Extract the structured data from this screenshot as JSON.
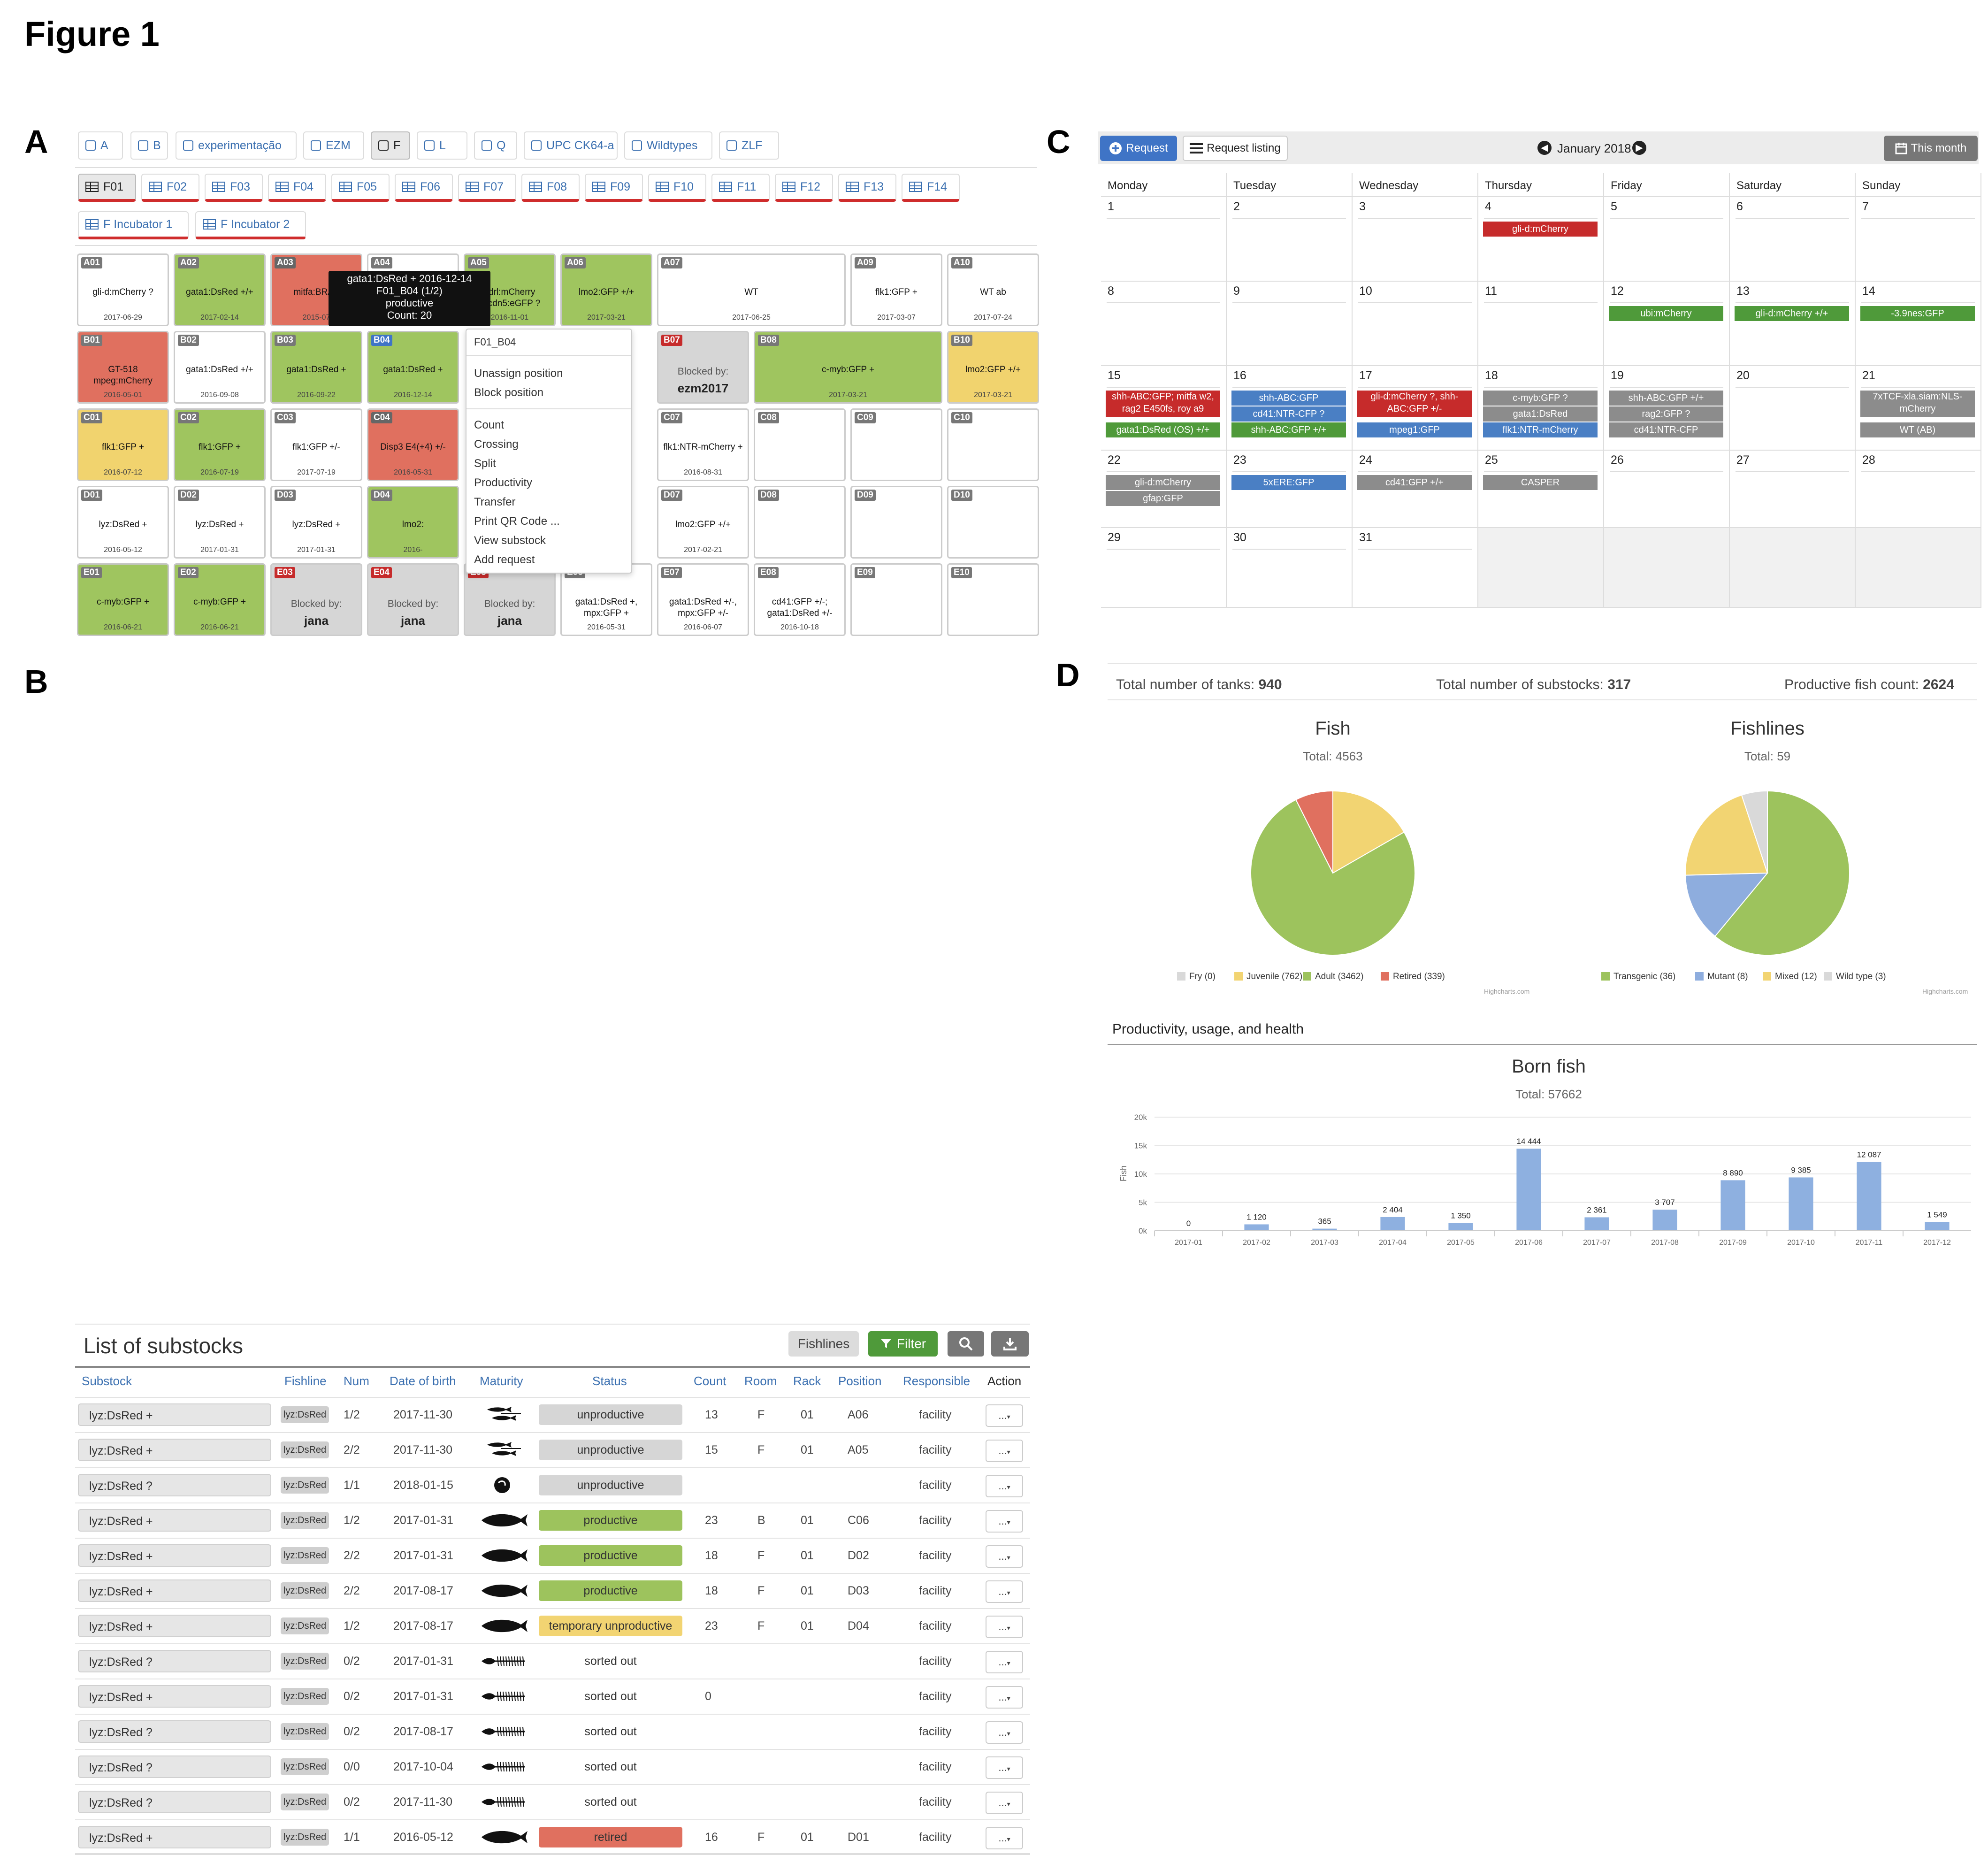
{
  "figure_title": "Figure 1",
  "panels": {
    "a": "A",
    "b": "B",
    "c": "C",
    "d": "D"
  },
  "panelA": {
    "room_tabs": [
      {
        "label": "A",
        "active": false
      },
      {
        "label": "B",
        "active": false
      },
      {
        "label": "experimentação",
        "active": false
      },
      {
        "label": "EZM",
        "active": false
      },
      {
        "label": "F",
        "active": true
      },
      {
        "label": "L",
        "active": false
      },
      {
        "label": "Q",
        "active": false
      },
      {
        "label": "UPC CK64-a",
        "active": false
      },
      {
        "label": "Wildtypes",
        "active": false
      },
      {
        "label": "ZLF",
        "active": false
      }
    ],
    "rack_tabs": [
      {
        "label": "F01",
        "active": true
      },
      {
        "label": "F02"
      },
      {
        "label": "F03"
      },
      {
        "label": "F04"
      },
      {
        "label": "F05"
      },
      {
        "label": "F06"
      },
      {
        "label": "F07"
      },
      {
        "label": "F08"
      },
      {
        "label": "F09"
      },
      {
        "label": "F10"
      },
      {
        "label": "F11"
      },
      {
        "label": "F12"
      },
      {
        "label": "F13"
      },
      {
        "label": "F14"
      }
    ],
    "incubator_tabs": [
      {
        "label": "F Incubator 1"
      },
      {
        "label": "F Incubator 2"
      }
    ],
    "tanks": [
      {
        "id": "A01",
        "line1": "gli-d:mCherry ?",
        "date": "2017-06-29",
        "state": "empty"
      },
      {
        "id": "A02",
        "line1": "gata1:DsRed +/+",
        "date": "2017-02-14",
        "state": "green"
      },
      {
        "id": "A03",
        "line1": "mitfa:BRAF",
        "date": "2015-07",
        "state": "red"
      },
      {
        "id": "A04",
        "line1": "",
        "date": "",
        "state": "empty"
      },
      {
        "id": "A05",
        "line1": "kdrl:mCherry fli:cdn5:eGFP ?",
        "date": "2016-11-01",
        "state": "green"
      },
      {
        "id": "A06",
        "line1": "lmo2:GFP +/+",
        "date": "2017-03-21",
        "state": "green"
      },
      {
        "id": "A07",
        "line1": "WT",
        "date": "2017-06-25",
        "state": "empty"
      },
      {
        "id": "A09",
        "line1": "flk1:GFP +",
        "date": "2017-03-07",
        "state": "empty"
      },
      {
        "id": "A10",
        "line1": "WT ab",
        "date": "2017-07-24",
        "state": "empty"
      },
      {
        "id": "B01",
        "line1": "GT-518 mpeg:mCherry",
        "date": "2016-05-01",
        "state": "red"
      },
      {
        "id": "B02",
        "line1": "gata1:DsRed +/+",
        "date": "2016-09-08",
        "state": "empty"
      },
      {
        "id": "B03",
        "line1": "gata1:DsRed +",
        "date": "2016-09-22",
        "state": "green"
      },
      {
        "id": "B04",
        "line1": "gata1:DsRed +",
        "date": "2016-12-14",
        "state": "green"
      },
      {
        "id": "B07",
        "blocked_label": "Blocked by:",
        "blocked_by": "ezm2017",
        "state": "grey"
      },
      {
        "id": "B08",
        "line1": "c-myb:GFP +",
        "date": "2017-03-21",
        "state": "green"
      },
      {
        "id": "B10",
        "line1": "lmo2:GFP +/+",
        "date": "2017-03-21",
        "state": "yellow"
      },
      {
        "id": "C01",
        "line1": "flk1:GFP +",
        "date": "2016-07-12",
        "state": "yellow"
      },
      {
        "id": "C02",
        "line1": "flk1:GFP +",
        "date": "2016-07-19",
        "state": "green"
      },
      {
        "id": "C03",
        "line1": "flk1:GFP +/-",
        "date": "2017-07-19",
        "state": "empty"
      },
      {
        "id": "C04",
        "line1": "Disp3 E4(+4) +/-",
        "date": "2016-05-31",
        "state": "red"
      },
      {
        "id": "C07",
        "line1": "flk1:NTR-mCherry +",
        "date": "2016-08-31",
        "state": "empty"
      },
      {
        "id": "C08",
        "line1": "",
        "date": "",
        "state": "empty"
      },
      {
        "id": "C09",
        "line1": "",
        "date": "",
        "state": "empty"
      },
      {
        "id": "C10",
        "line1": "",
        "date": "",
        "state": "empty"
      },
      {
        "id": "D01",
        "line1": "lyz:DsRed +",
        "date": "2016-05-12",
        "state": "empty"
      },
      {
        "id": "D02",
        "line1": "lyz:DsRed +",
        "date": "2017-01-31",
        "state": "empty"
      },
      {
        "id": "D03",
        "line1": "lyz:DsRed +",
        "date": "2017-01-31",
        "state": "empty"
      },
      {
        "id": "D04",
        "line1": "lmo2:",
        "date": "2016-",
        "state": "green"
      },
      {
        "id": "D07",
        "line1": "lmo2:GFP +/+",
        "date": "2017-02-21",
        "state": "empty"
      },
      {
        "id": "D08",
        "line1": "",
        "date": "",
        "state": "empty"
      },
      {
        "id": "D09",
        "line1": "",
        "date": "",
        "state": "empty"
      },
      {
        "id": "D10",
        "line1": "",
        "date": "",
        "state": "empty"
      },
      {
        "id": "E01",
        "line1": "c-myb:GFP +",
        "date": "2016-06-21",
        "state": "green"
      },
      {
        "id": "E02",
        "line1": "c-myb:GFP +",
        "date": "2016-06-21",
        "state": "green"
      },
      {
        "id": "E03",
        "blocked_label": "Blocked by:",
        "blocked_by": "jana",
        "state": "grey"
      },
      {
        "id": "E04",
        "blocked_label": "Blocked by:",
        "blocked_by": "jana",
        "state": "grey"
      },
      {
        "id": "E05",
        "blocked_label": "Blocked by:",
        "blocked_by": "jana",
        "state": "grey"
      },
      {
        "id": "E06",
        "line1": "gata1:DsRed +, mpx:GFP +",
        "date": "2016-05-31",
        "state": "empty"
      },
      {
        "id": "E07",
        "line1": "gata1:DsRed +/-, mpx:GFP +/-",
        "date": "2016-06-07",
        "state": "empty"
      },
      {
        "id": "E08",
        "line1": "cd41:GFP +/-; gata1:DsRed +/-",
        "date": "2016-10-18",
        "state": "empty"
      },
      {
        "id": "E09",
        "line1": "",
        "date": "",
        "state": "empty"
      },
      {
        "id": "E10",
        "line1": "",
        "date": "",
        "state": "empty"
      }
    ],
    "tooltip": {
      "line1": "gata1:DsRed + 2016-12-14",
      "line2": "F01_B04 (1/2)",
      "line3": "productive",
      "line4": "Count: 20"
    },
    "context_menu": {
      "header": "F01_B04",
      "group1": [
        "Unassign position",
        "Block position"
      ],
      "group2": [
        "Count",
        "Crossing",
        "Split",
        "Productivity",
        "Transfer",
        "Print QR Code ...",
        "View substock",
        "Add request"
      ]
    }
  },
  "panelB": {
    "title": "List of substocks",
    "fishlines_button": "Fishlines",
    "filter_button": "Filter",
    "columns": [
      "Substock",
      "Fishline",
      "Num",
      "Date of birth",
      "Maturity",
      "Status",
      "Count",
      "Room",
      "Rack",
      "Position",
      "Responsible",
      "Action"
    ],
    "rows": [
      {
        "substock": "lyz:DsRed +",
        "fishline": "lyz:DsRed",
        "num": "1/2",
        "dob": "2017-11-30",
        "maturity": "juvenile",
        "status": "unproductive",
        "status_color": "grey",
        "count": "13",
        "room": "F",
        "rack": "01",
        "position": "A06",
        "responsible": "facility"
      },
      {
        "substock": "lyz:DsRed +",
        "fishline": "lyz:DsRed",
        "num": "2/2",
        "dob": "2017-11-30",
        "maturity": "juvenile",
        "status": "unproductive",
        "status_color": "grey",
        "count": "15",
        "room": "F",
        "rack": "01",
        "position": "A05",
        "responsible": "facility"
      },
      {
        "substock": "lyz:DsRed ?",
        "fishline": "lyz:DsRed",
        "num": "1/1",
        "dob": "2018-01-15",
        "maturity": "egg",
        "status": "unproductive",
        "status_color": "grey",
        "count": "",
        "room": "",
        "rack": "",
        "position": "",
        "responsible": "facility"
      },
      {
        "substock": "lyz:DsRed +",
        "fishline": "lyz:DsRed",
        "num": "1/2",
        "dob": "2017-01-31",
        "maturity": "adult",
        "status": "productive",
        "status_color": "green",
        "count": "23",
        "room": "B",
        "rack": "01",
        "position": "C06",
        "responsible": "facility"
      },
      {
        "substock": "lyz:DsRed +",
        "fishline": "lyz:DsRed",
        "num": "2/2",
        "dob": "2017-01-31",
        "maturity": "adult",
        "status": "productive",
        "status_color": "green",
        "count": "18",
        "room": "F",
        "rack": "01",
        "position": "D02",
        "responsible": "facility"
      },
      {
        "substock": "lyz:DsRed +",
        "fishline": "lyz:DsRed",
        "num": "2/2",
        "dob": "2017-08-17",
        "maturity": "adult",
        "status": "productive",
        "status_color": "green",
        "count": "18",
        "room": "F",
        "rack": "01",
        "position": "D03",
        "responsible": "facility"
      },
      {
        "substock": "lyz:DsRed +",
        "fishline": "lyz:DsRed",
        "num": "1/2",
        "dob": "2017-08-17",
        "maturity": "adult",
        "status": "temporary unproductive",
        "status_color": "yellow",
        "count": "23",
        "room": "F",
        "rack": "01",
        "position": "D04",
        "responsible": "facility"
      },
      {
        "substock": "lyz:DsRed ?",
        "fishline": "lyz:DsRed",
        "num": "0/2",
        "dob": "2017-01-31",
        "maturity": "skeleton",
        "status": "sorted out",
        "status_color": "none",
        "count": "",
        "room": "",
        "rack": "",
        "position": "",
        "responsible": "facility"
      },
      {
        "substock": "lyz:DsRed +",
        "fishline": "lyz:DsRed",
        "num": "0/2",
        "dob": "2017-01-31",
        "maturity": "skeleton",
        "status": "sorted out",
        "status_color": "none",
        "count": "0",
        "room": "",
        "rack": "",
        "position": "",
        "responsible": "facility"
      },
      {
        "substock": "lyz:DsRed ?",
        "fishline": "lyz:DsRed",
        "num": "0/2",
        "dob": "2017-08-17",
        "maturity": "skeleton",
        "status": "sorted out",
        "status_color": "none",
        "count": "",
        "room": "",
        "rack": "",
        "position": "",
        "responsible": "facility"
      },
      {
        "substock": "lyz:DsRed ?",
        "fishline": "lyz:DsRed",
        "num": "0/0",
        "dob": "2017-10-04",
        "maturity": "skeleton",
        "status": "sorted out",
        "status_color": "none",
        "count": "",
        "room": "",
        "rack": "",
        "position": "",
        "responsible": "facility"
      },
      {
        "substock": "lyz:DsRed ?",
        "fishline": "lyz:DsRed",
        "num": "0/2",
        "dob": "2017-11-30",
        "maturity": "skeleton",
        "status": "sorted out",
        "status_color": "none",
        "count": "",
        "room": "",
        "rack": "",
        "position": "",
        "responsible": "facility"
      },
      {
        "substock": "lyz:DsRed +",
        "fishline": "lyz:DsRed",
        "num": "1/1",
        "dob": "2016-05-12",
        "maturity": "adult",
        "status": "retired",
        "status_color": "red",
        "count": "16",
        "room": "F",
        "rack": "01",
        "position": "D01",
        "responsible": "facility"
      }
    ],
    "action_label": "..."
  },
  "panelC": {
    "request_button": "Request",
    "listing_button": "Request listing",
    "month": "January 2018",
    "this_month_button": "This month",
    "weekdays": [
      "Monday",
      "Tuesday",
      "Wednesday",
      "Thursday",
      "Friday",
      "Saturday",
      "Sunday"
    ],
    "weeks": [
      [
        "1",
        "2",
        "3",
        "4",
        "5",
        "6",
        "7"
      ],
      [
        "8",
        "9",
        "10",
        "11",
        "12",
        "13",
        "14"
      ],
      [
        "15",
        "16",
        "17",
        "18",
        "19",
        "20",
        "21"
      ],
      [
        "22",
        "23",
        "24",
        "25",
        "26",
        "27",
        "28"
      ],
      [
        "29",
        "30",
        "31",
        "",
        "",
        "",
        ""
      ]
    ],
    "events": [
      {
        "week": 0,
        "day": 3,
        "slot": 0,
        "label": "gli-d:mCherry",
        "color": "red"
      },
      {
        "week": 1,
        "day": 4,
        "slot": 0,
        "label": "ubi:mCherry",
        "color": "green"
      },
      {
        "week": 1,
        "day": 5,
        "slot": 0,
        "label": "gli-d:mCherry +/+",
        "color": "green"
      },
      {
        "week": 1,
        "day": 6,
        "slot": 0,
        "label": "-3.9nes:GFP",
        "color": "green"
      },
      {
        "week": 2,
        "day": 0,
        "slot": 0,
        "label": "shh-ABC:GFP; mitfa w2, rag2 E450fs, roy a9",
        "color": "red",
        "tall": true
      },
      {
        "week": 2,
        "day": 0,
        "slot": 2,
        "label": "gata1:DsRed (OS) +/+",
        "color": "green"
      },
      {
        "week": 2,
        "day": 1,
        "slot": 0,
        "label": "shh-ABC:GFP",
        "color": "blue"
      },
      {
        "week": 2,
        "day": 1,
        "slot": 1,
        "label": "cd41:NTR-CFP ?",
        "color": "blue"
      },
      {
        "week": 2,
        "day": 1,
        "slot": 2,
        "label": "shh-ABC:GFP +/+",
        "color": "green"
      },
      {
        "week": 2,
        "day": 2,
        "slot": 0,
        "label": "gli-d:mCherry ?, shh-ABC:GFP +/-",
        "color": "red",
        "tall": true
      },
      {
        "week": 2,
        "day": 2,
        "slot": 2,
        "label": "mpeg1:GFP",
        "color": "blue"
      },
      {
        "week": 2,
        "day": 3,
        "slot": 0,
        "label": "c-myb:GFP ?",
        "color": "grey"
      },
      {
        "week": 2,
        "day": 3,
        "slot": 1,
        "label": "gata1:DsRed",
        "color": "grey"
      },
      {
        "week": 2,
        "day": 3,
        "slot": 2,
        "label": "flk1:NTR-mCherry",
        "color": "blue"
      },
      {
        "week": 2,
        "day": 4,
        "slot": 0,
        "label": "shh-ABC:GFP +/+",
        "color": "grey"
      },
      {
        "week": 2,
        "day": 4,
        "slot": 1,
        "label": "rag2:GFP ?",
        "color": "grey"
      },
      {
        "week": 2,
        "day": 4,
        "slot": 2,
        "label": "cd41:NTR-CFP",
        "color": "grey"
      },
      {
        "week": 2,
        "day": 6,
        "slot": 0,
        "label": "7xTCF-xla.siam:NLS-mCherry",
        "color": "grey",
        "tall": true
      },
      {
        "week": 2,
        "day": 6,
        "slot": 2,
        "label": "WT (AB)",
        "color": "grey"
      },
      {
        "week": 3,
        "day": 0,
        "slot": 0,
        "label": "gli-d:mCherry",
        "color": "grey"
      },
      {
        "week": 3,
        "day": 0,
        "slot": 1,
        "label": "gfap:GFP",
        "color": "grey"
      },
      {
        "week": 3,
        "day": 1,
        "slot": 0,
        "label": "5xERE:GFP",
        "color": "blue"
      },
      {
        "week": 3,
        "day": 2,
        "slot": 0,
        "label": "cd41:GFP +/+",
        "color": "grey"
      },
      {
        "week": 3,
        "day": 3,
        "slot": 0,
        "label": "CASPER",
        "color": "grey"
      }
    ]
  },
  "panelD": {
    "stats": {
      "tanks_label": "Total number of tanks:",
      "tanks_value": "940",
      "substocks_label": "Total number of substocks:",
      "substocks_value": "317",
      "productive_label": "Productive fish count:",
      "productive_value": "2624"
    },
    "credits": "Highcharts.com",
    "productivity_header": "Productivity, usage, and health",
    "colors": {
      "grey": "#d9d9d9",
      "yellow": "#f2d472",
      "green": "#9dc35d",
      "red": "#e0705f",
      "blue": "#8eadde",
      "barblue": "#8eb0e0"
    }
  },
  "chart_data": [
    {
      "type": "pie",
      "title": "Fish",
      "subtitle": "Total: 4563",
      "categories": [
        "Fry (0)",
        "Juvenile (762)",
        "Adult (3462)",
        "Retired (339)"
      ],
      "values": [
        0,
        762,
        3462,
        339
      ],
      "colors": [
        "#d9d9d9",
        "#f2d472",
        "#9dc35d",
        "#e0705f"
      ],
      "legend": "bottom"
    },
    {
      "type": "pie",
      "title": "Fishlines",
      "subtitle": "Total: 59",
      "categories": [
        "Transgenic (36)",
        "Mutant (8)",
        "Mixed (12)",
        "Wild type (3)"
      ],
      "values": [
        36,
        8,
        12,
        3
      ],
      "colors": [
        "#9dc35d",
        "#8eadde",
        "#f2d472",
        "#d9d9d9"
      ],
      "legend": "bottom"
    },
    {
      "type": "bar",
      "title": "Born fish",
      "subtitle": "Total: 57662",
      "categories": [
        "2017-01",
        "2017-02",
        "2017-03",
        "2017-04",
        "2017-05",
        "2017-06",
        "2017-07",
        "2017-08",
        "2017-09",
        "2017-10",
        "2017-11",
        "2017-12"
      ],
      "values": [
        0,
        1120,
        365,
        2404,
        1350,
        14444,
        2361,
        3707,
        8890,
        9385,
        12087,
        1549
      ],
      "data_labels": [
        "0",
        "1 120",
        "365",
        "2 404",
        "1 350",
        "14 444",
        "2 361",
        "3 707",
        "8 890",
        "9 385",
        "12 087",
        "1 549"
      ],
      "ylabel": "Fish",
      "ylim": [
        0,
        20000
      ],
      "yticks": [
        "0k",
        "5k",
        "10k",
        "15k",
        "20k"
      ],
      "grid": true
    }
  ]
}
